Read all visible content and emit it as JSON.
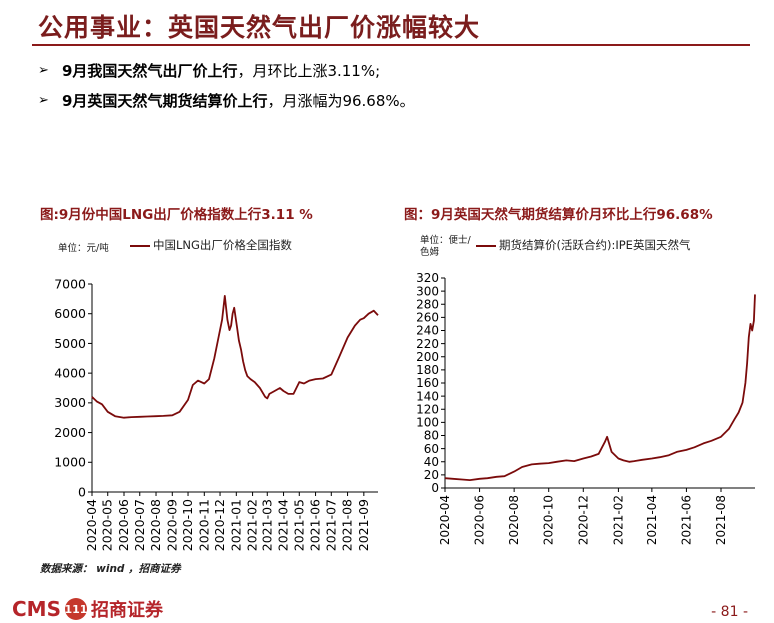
{
  "header": {
    "title": "公用事业：英国天然气出厂价涨幅较大",
    "bullets": [
      {
        "bold": "9月我国天然气出厂价上行",
        "rest": "，月环比上涨3.11%;"
      },
      {
        "bold": "9月英国天然气期货结算价上行",
        "rest": "，月涨幅为96.68%。"
      }
    ],
    "arrow": "➢"
  },
  "chart_data": [
    {
      "type": "line",
      "title": "图:9月份中国LNG出厂价格指数上行3.11 %",
      "unit": "单位：元/吨",
      "legend": "中国LNG出厂价格全国指数",
      "ylim": [
        0,
        7000
      ],
      "yticks": [
        0,
        1000,
        2000,
        3000,
        4000,
        5000,
        6000,
        7000
      ],
      "xticks": [
        "2020-04",
        "2020-05",
        "2020-06",
        "2020-07",
        "2020-08",
        "2020-09",
        "2020-10",
        "2020-11",
        "2020-12",
        "2021-01",
        "2021-02",
        "2021-03",
        "2021-04",
        "2021-05",
        "2021-06",
        "2021-07",
        "2021-08",
        "2021-09"
      ],
      "series": [
        {
          "x": [
            "2020-04-01",
            "2020-04-10",
            "2020-04-20",
            "2020-05-01",
            "2020-05-15",
            "2020-06-01",
            "2020-06-15",
            "2020-07-01",
            "2020-07-15",
            "2020-08-01",
            "2020-08-15",
            "2020-09-01",
            "2020-09-15",
            "2020-10-01",
            "2020-10-10",
            "2020-10-20",
            "2020-11-01",
            "2020-11-10",
            "2020-11-20",
            "2020-11-28",
            "2020-12-05",
            "2020-12-10",
            "2020-12-15",
            "2020-12-19",
            "2020-12-22",
            "2020-12-25",
            "2020-12-28",
            "2021-01-02",
            "2021-01-06",
            "2021-01-10",
            "2021-01-14",
            "2021-01-18",
            "2021-01-22",
            "2021-01-28",
            "2021-02-05",
            "2021-02-15",
            "2021-02-25",
            "2021-03-01",
            "2021-03-05",
            "2021-03-15",
            "2021-03-25",
            "2021-04-01",
            "2021-04-10",
            "2021-04-20",
            "2021-05-01",
            "2021-05-10",
            "2021-05-15",
            "2021-05-20",
            "2021-06-01",
            "2021-06-15",
            "2021-07-01",
            "2021-07-15",
            "2021-08-01",
            "2021-08-15",
            "2021-08-25",
            "2021-09-01",
            "2021-09-10",
            "2021-09-20",
            "2021-09-28"
          ],
          "values": [
            3200,
            3050,
            2950,
            2700,
            2550,
            2500,
            2520,
            2530,
            2540,
            2550,
            2560,
            2580,
            2700,
            3100,
            3600,
            3750,
            3650,
            3800,
            4500,
            5200,
            5800,
            6600,
            5800,
            5450,
            5600,
            6000,
            6200,
            5600,
            5100,
            4800,
            4400,
            4100,
            3900,
            3800,
            3700,
            3500,
            3200,
            3150,
            3300,
            3400,
            3500,
            3400,
            3300,
            3300,
            3700,
            3650,
            3700,
            3750,
            3800,
            3820,
            3950,
            4500,
            5200,
            5600,
            5800,
            5850,
            6000,
            6100,
            5950
          ]
        }
      ]
    },
    {
      "type": "line",
      "title": "图：9月英国天然气期货结算价月环比上行96.68%",
      "unit": "单位：便士/色姆",
      "legend": "期货结算价(活跃合约):IPE英国天然气",
      "ylim": [
        0,
        320
      ],
      "yticks": [
        0,
        20,
        40,
        60,
        80,
        100,
        120,
        140,
        160,
        180,
        200,
        220,
        240,
        260,
        280,
        300,
        320
      ],
      "xticks": [
        "2020-04",
        "2020-06",
        "2020-08",
        "2020-10",
        "2020-12",
        "2021-02",
        "2021-04",
        "2021-06",
        "2021-08"
      ],
      "series": [
        {
          "x": [
            "2020-04-01",
            "2020-04-15",
            "2020-05-01",
            "2020-05-15",
            "2020-06-01",
            "2020-06-15",
            "2020-07-01",
            "2020-07-15",
            "2020-08-01",
            "2020-08-15",
            "2020-09-01",
            "2020-09-15",
            "2020-10-01",
            "2020-10-15",
            "2020-11-01",
            "2020-11-15",
            "2020-12-01",
            "2020-12-15",
            "2020-12-28",
            "2021-01-08",
            "2021-01-12",
            "2021-01-20",
            "2021-02-01",
            "2021-02-10",
            "2021-02-20",
            "2021-03-01",
            "2021-03-15",
            "2021-04-01",
            "2021-04-15",
            "2021-05-01",
            "2021-05-15",
            "2021-06-01",
            "2021-06-15",
            "2021-07-01",
            "2021-07-15",
            "2021-08-01",
            "2021-08-15",
            "2021-08-25",
            "2021-09-01",
            "2021-09-08",
            "2021-09-13",
            "2021-09-16",
            "2021-09-19",
            "2021-09-22",
            "2021-09-25",
            "2021-09-28",
            "2021-09-30"
          ],
          "values": [
            15,
            14,
            13,
            12,
            14,
            15,
            17,
            18,
            25,
            32,
            36,
            37,
            38,
            40,
            42,
            41,
            45,
            48,
            52,
            70,
            78,
            55,
            45,
            42,
            40,
            41,
            43,
            45,
            47,
            50,
            55,
            58,
            62,
            68,
            72,
            78,
            90,
            105,
            115,
            130,
            160,
            190,
            230,
            250,
            240,
            255,
            295
          ]
        }
      ]
    }
  ],
  "footer": {
    "source": "数据来源： wind ，招商证券",
    "logo_en": "CMS",
    "logo_badge": "111",
    "logo_cn": "招商证券",
    "page": "- 81 -"
  },
  "colors": {
    "accent": "#8b1a1a",
    "line": "#7b0b0b"
  }
}
